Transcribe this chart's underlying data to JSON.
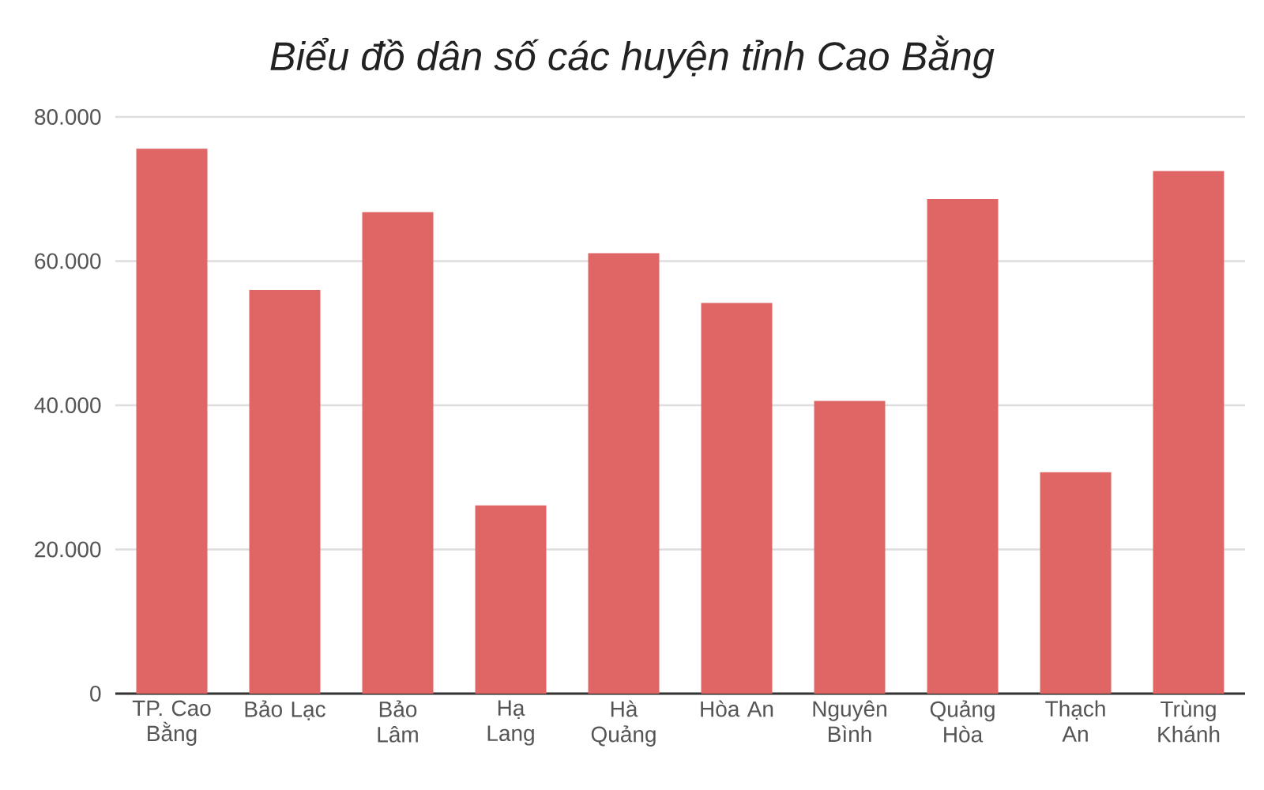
{
  "chart_data": {
    "type": "bar",
    "title": "Biểu đồ dân số các huyện tỉnh Cao Bằng",
    "categories": [
      "TP. Cao Bằng",
      "Bảo Lạc",
      "Bảo Lâm",
      "Hạ Lang",
      "Hà Quảng",
      "Hòa An",
      "Nguyên Bình",
      "Quảng Hòa",
      "Thạch An",
      "Trùng Khánh"
    ],
    "values": [
      75600,
      56000,
      66800,
      26100,
      61100,
      54200,
      40600,
      68600,
      30700,
      72500
    ],
    "color": "#e06666",
    "ylim": [
      0,
      80000
    ],
    "yticks": [
      0,
      {
        "value": 20000,
        "label": "20.000"
      },
      {
        "value": 40000,
        "label": "40.000"
      },
      {
        "value": 60000,
        "label": "60.000"
      },
      {
        "value": 80000,
        "label": "80.000"
      }
    ],
    "grid": "y"
  }
}
